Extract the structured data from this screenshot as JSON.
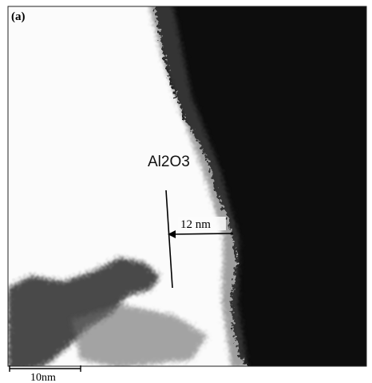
{
  "panel_label": "(a)",
  "material_label": "Al2O3",
  "thickness_label": "12 nm",
  "scale_bar_label": "10nm"
}
